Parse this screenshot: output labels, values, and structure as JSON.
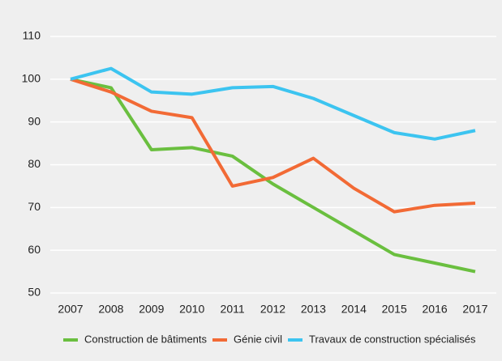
{
  "chart_data": {
    "type": "line",
    "categories": [
      "2007",
      "2008",
      "2009",
      "2010",
      "2011",
      "2012",
      "2013",
      "2014",
      "2015",
      "2016",
      "2017"
    ],
    "series": [
      {
        "name": "Construction de bâtiments",
        "color": "#6abf3f",
        "values": [
          100,
          98,
          83.5,
          84,
          82,
          75.5,
          70,
          64.5,
          59,
          57,
          55
        ]
      },
      {
        "name": "Génie civil",
        "color": "#f26a35",
        "values": [
          100,
          97,
          92.5,
          91,
          75,
          77,
          81.5,
          74.5,
          69,
          70.5,
          71
        ]
      },
      {
        "name": "Travaux de construction spécialisés",
        "color": "#3cc4f0",
        "values": [
          100,
          102.5,
          97,
          96.5,
          98,
          98.3,
          95.5,
          91.5,
          87.5,
          86,
          88
        ]
      }
    ],
    "ylim": [
      50,
      110
    ],
    "yticks": [
      50,
      60,
      70,
      80,
      90,
      100,
      110
    ],
    "grid": true
  }
}
